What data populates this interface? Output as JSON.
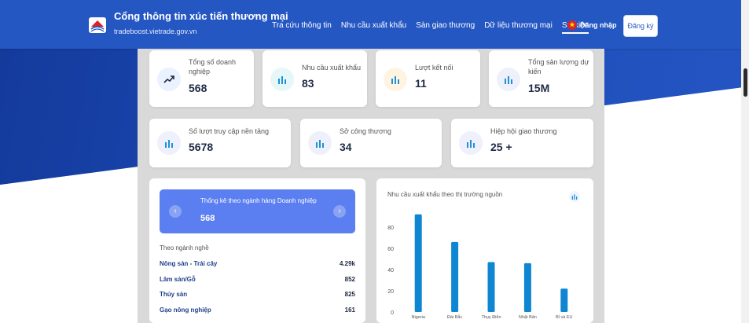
{
  "header": {
    "title": "Cổng thông tin xúc tiến thương mại",
    "subtitle": "tradeboost.vietrade.gov.vn",
    "nav": [
      "Tra cứu thông tin",
      "Nhu cầu xuất khẩu",
      "Sàn giao thương",
      "Dữ liệu thương mại",
      "Sự kiện"
    ],
    "active_nav": "Sự kiện",
    "login_label": "Đăng nhập",
    "register_label": "Đăng ký"
  },
  "stats_row1": [
    {
      "label": "Tổng số doanh nghiệp",
      "value": "568",
      "icon": "trend-up-icon"
    },
    {
      "label": "Nhu cầu xuất khẩu",
      "value": "83",
      "icon": "bar-chart-icon"
    },
    {
      "label": "Lượt kết nối",
      "value": "11",
      "icon": "bar-chart-icon"
    },
    {
      "label": "Tổng sản lượng dự kiến",
      "value": "15M",
      "icon": "bar-chart-icon"
    }
  ],
  "stats_row2": [
    {
      "label": "Số lượt truy cập nền tảng",
      "value": "5678"
    },
    {
      "label": "Sở công thương",
      "value": "34"
    },
    {
      "label": "Hiệp hội giao thương",
      "value": "25 +"
    }
  ],
  "industry": {
    "banner_title": "Thống kê theo ngành hàng Doanh nghiệp",
    "banner_value": "568",
    "subheading": "Theo ngành nghề",
    "rows": [
      {
        "name": "Nông sản - Trái cây",
        "value": "4.29k"
      },
      {
        "name": "Lâm sản/Gỗ",
        "value": "852"
      },
      {
        "name": "Thủy sản",
        "value": "825"
      },
      {
        "name": "Gạo nông nghiệp",
        "value": "161"
      }
    ]
  },
  "chart_data": {
    "type": "bar",
    "title": "Nhu cầu xuất khẩu theo thị trường nguồn",
    "categories": [
      "Nigeria",
      "Đài Bắc",
      "Thụy Điển",
      "Nhật Bản",
      "Bỉ và EU"
    ],
    "values": [
      92,
      66,
      47,
      46,
      22
    ],
    "ylim": [
      0,
      100
    ],
    "yticks": [
      0,
      20,
      40,
      60,
      80
    ],
    "color": "#0f86d1"
  },
  "colors": {
    "primary": "#2557c3",
    "banner": "#5b7ef0",
    "bar": "#0f86d1"
  }
}
